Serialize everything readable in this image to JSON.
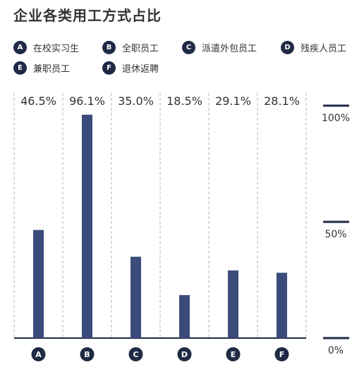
{
  "title": "企业各类用工方式占比",
  "legend": [
    {
      "letter": "A",
      "label": "在校实习生"
    },
    {
      "letter": "B",
      "label": "全职员工"
    },
    {
      "letter": "C",
      "label": "派遣外包员工"
    },
    {
      "letter": "D",
      "label": "残疾人员工"
    },
    {
      "letter": "E",
      "label": "兼职员工"
    },
    {
      "letter": "F",
      "label": "退休返聘"
    }
  ],
  "colors": {
    "bar": "#3b4c7c",
    "badge": "#1f2a44",
    "axis": "#1f2a44",
    "grid": "#b5b5b5"
  },
  "chart_data": {
    "type": "bar",
    "title": "企业各类用工方式占比",
    "categories": [
      "A",
      "B",
      "C",
      "D",
      "E",
      "F"
    ],
    "values": [
      46.5,
      96.1,
      35.0,
      18.5,
      29.1,
      28.1
    ],
    "value_labels": [
      "46.5%",
      "96.1%",
      "35.0%",
      "18.5%",
      "29.1%",
      "28.1%"
    ],
    "ylim": [
      0,
      100
    ],
    "yticks": [
      {
        "value": 100,
        "label": "100%"
      },
      {
        "value": 50,
        "label": "50%"
      },
      {
        "value": 0,
        "label": "0%"
      }
    ],
    "grid": "dashed vertical separators",
    "legend_position": "top"
  }
}
